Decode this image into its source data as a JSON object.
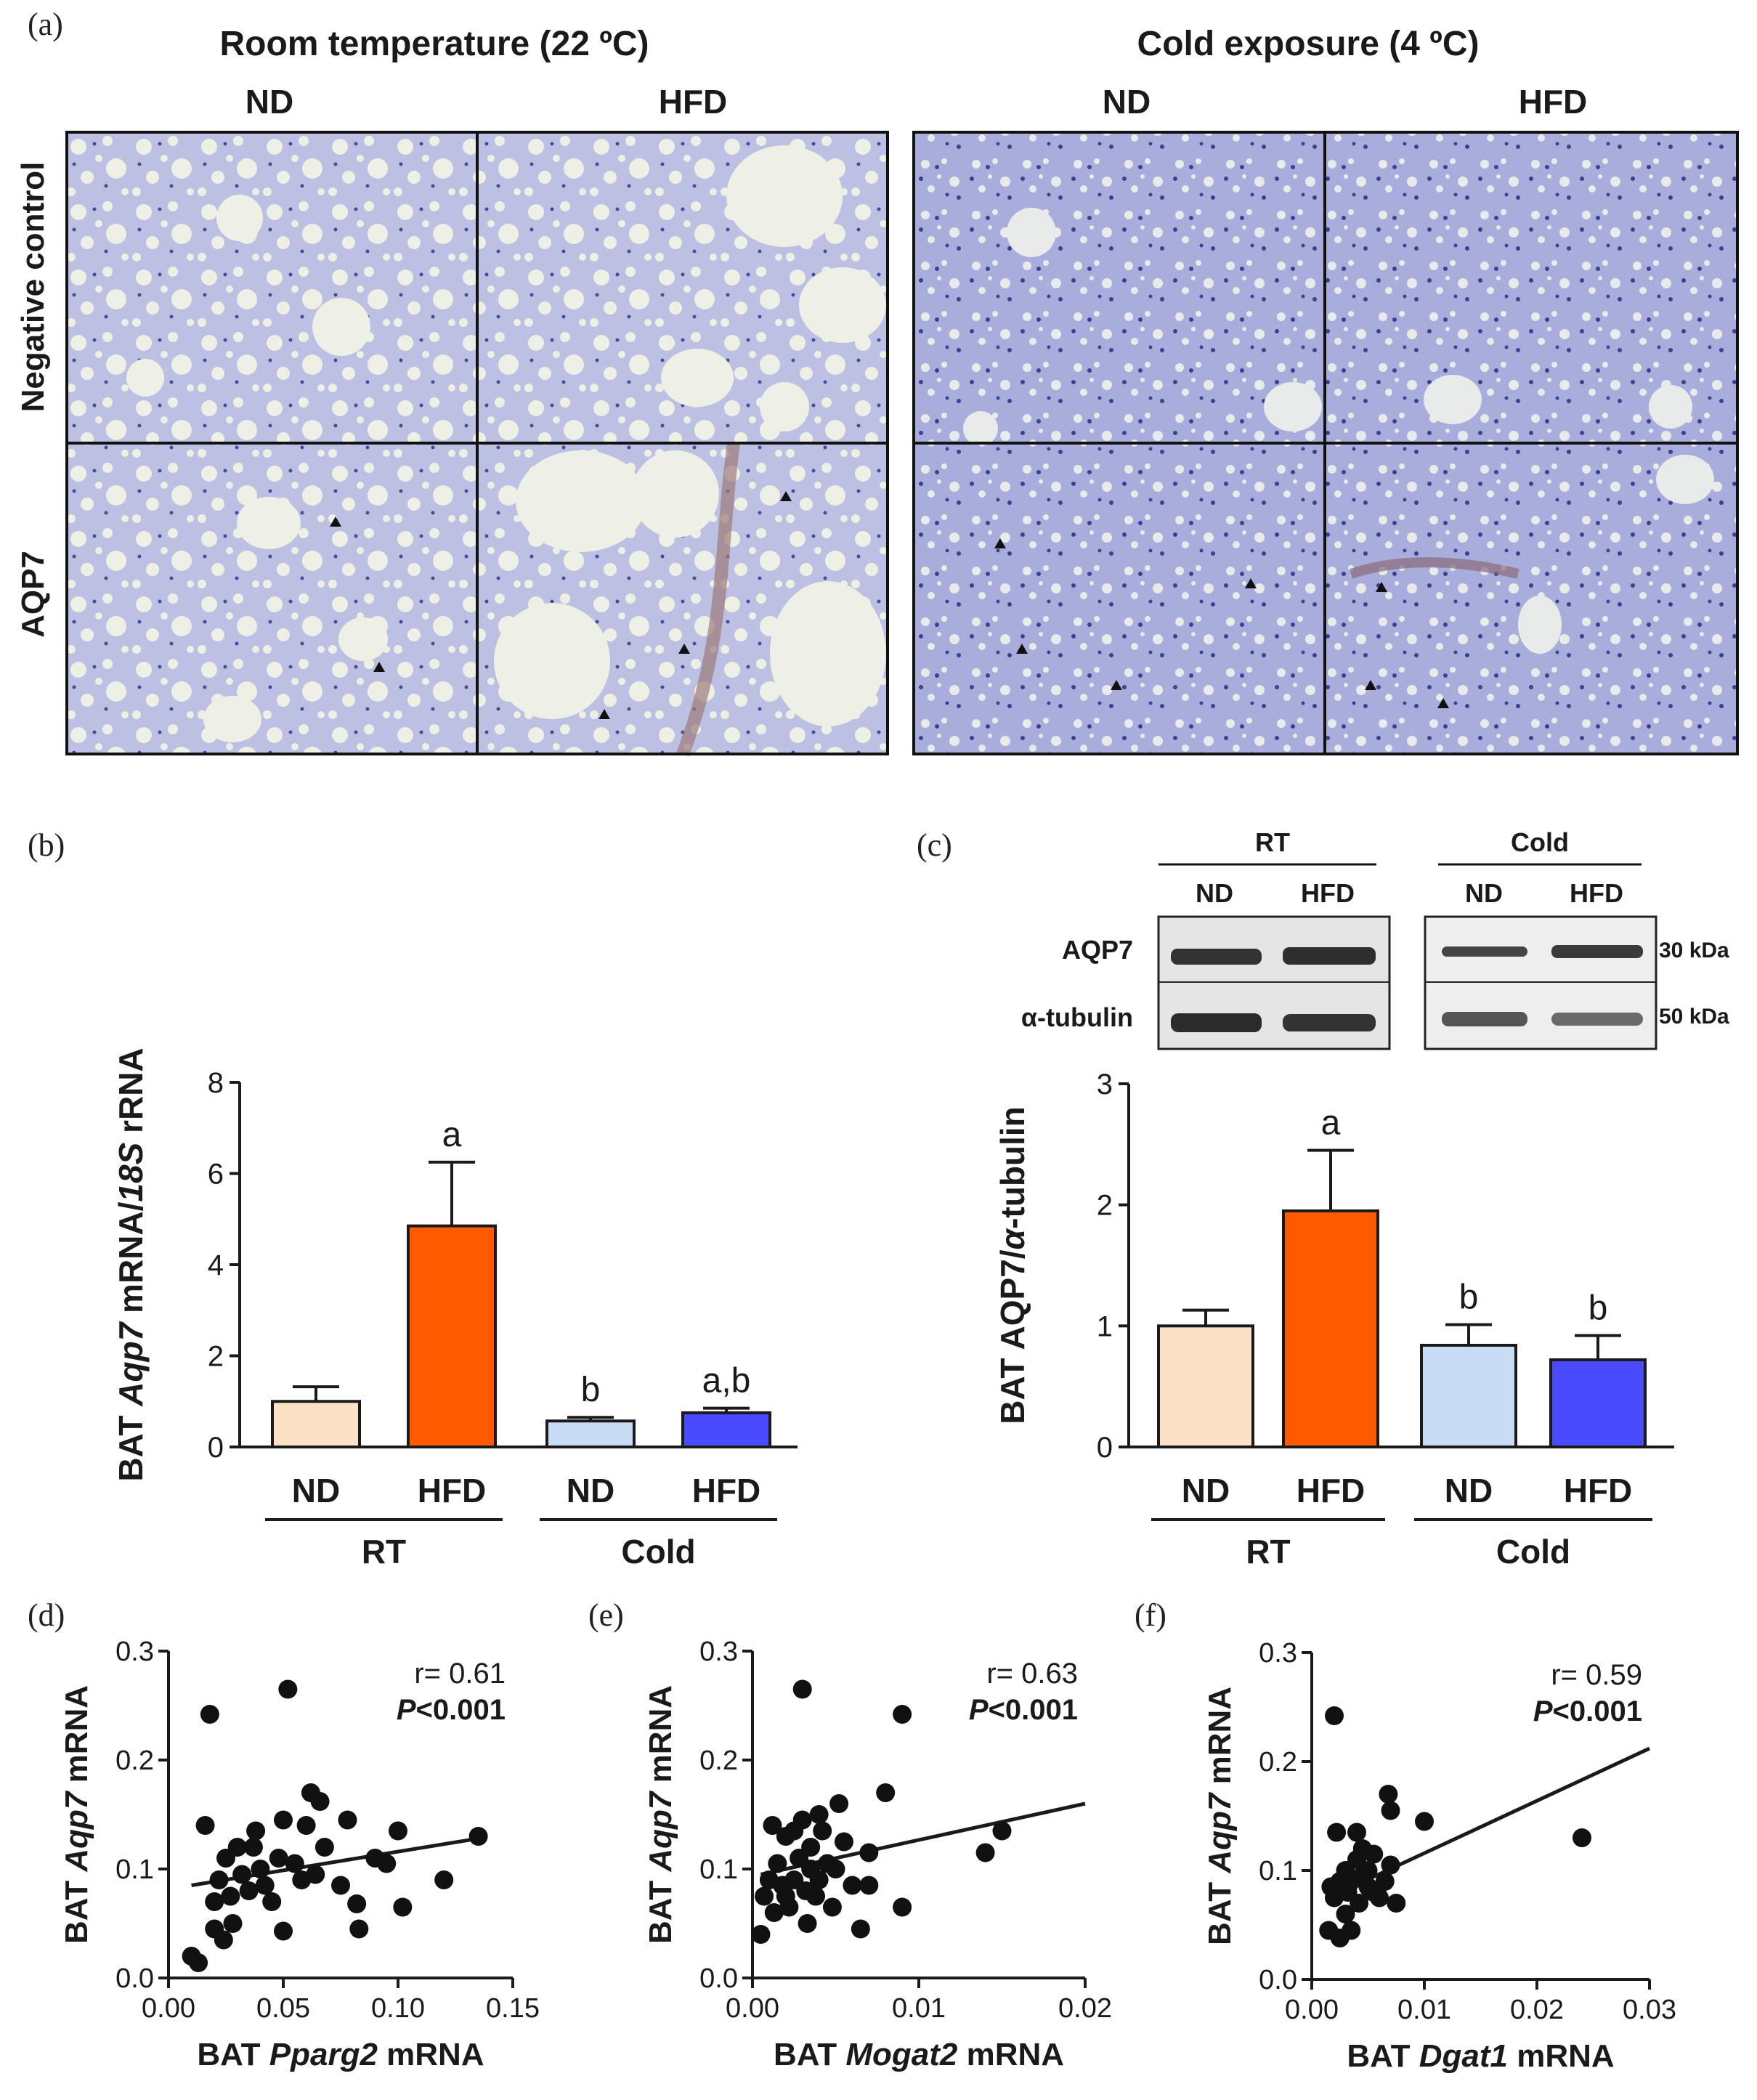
{
  "colors": {
    "rt_nd": "#fde1c6",
    "rt_hfd": "#ff5a00",
    "cold_nd": "#c8dcf6",
    "cold_hfd": "#4a4aff",
    "tissue_bg": "#b9bde0",
    "tissue_dark": "#5a5aa8",
    "fat_cell": "#f1f3e4",
    "ink": "#1a1a1a"
  },
  "panel_a": {
    "letter": "(a)",
    "group_headers": [
      "Room temperature (22 ºC)",
      "Cold exposure (4 ºC)"
    ],
    "column_headers": [
      "ND",
      "HFD",
      "ND",
      "HFD"
    ],
    "row_labels": [
      "Negative control",
      "AQP7"
    ]
  },
  "panel_b": {
    "letter": "(b)"
  },
  "panel_c": {
    "letter": "(c)",
    "blot": {
      "group_labels": [
        "RT",
        "Cold"
      ],
      "lane_labels": [
        "ND",
        "HFD",
        "ND",
        "HFD"
      ],
      "row_labels": [
        "AQP7",
        "α-tubulin"
      ],
      "kda_labels": [
        "30 kDa",
        "50 kDa"
      ]
    }
  },
  "panel_d": {
    "letter": "(d)"
  },
  "panel_e": {
    "letter": "(e)"
  },
  "panel_f": {
    "letter": "(f)"
  },
  "chart_data": [
    {
      "id": "b",
      "type": "bar",
      "ylabel_parts": [
        "BAT ",
        "Aqp7",
        " mRNA/",
        "18S",
        " rRNA"
      ],
      "ylim": [
        0,
        8
      ],
      "yticks": [
        "0",
        "2",
        "4",
        "6",
        "8"
      ],
      "categories": [
        "ND",
        "HFD",
        "ND",
        "HFD"
      ],
      "groups": [
        {
          "label": "RT",
          "span": [
            0,
            1
          ]
        },
        {
          "label": "Cold",
          "span": [
            2,
            3
          ]
        }
      ],
      "values": [
        1.0,
        4.85,
        0.57,
        0.75
      ],
      "errors": [
        0.32,
        1.4,
        0.08,
        0.1
      ],
      "letters": [
        "",
        "a",
        "b",
        "a,b"
      ],
      "colors": [
        "#fde1c6",
        "#ff5a00",
        "#c8dcf6",
        "#4a4aff"
      ]
    },
    {
      "id": "c",
      "type": "bar",
      "ylabel_parts": [
        "BAT AQP7/",
        "α",
        "-tubulin"
      ],
      "ylim": [
        0,
        3
      ],
      "yticks": [
        "0",
        "1",
        "2",
        "3"
      ],
      "categories": [
        "ND",
        "HFD",
        "ND",
        "HFD"
      ],
      "groups": [
        {
          "label": "RT",
          "span": [
            0,
            1
          ]
        },
        {
          "label": "Cold",
          "span": [
            2,
            3
          ]
        }
      ],
      "values": [
        1.0,
        1.95,
        0.84,
        0.72
      ],
      "errors": [
        0.13,
        0.5,
        0.17,
        0.2
      ],
      "letters": [
        "",
        "a",
        "b",
        "b"
      ],
      "colors": [
        "#fde1c6",
        "#ff5a00",
        "#c8dcf6",
        "#4a4aff"
      ]
    },
    {
      "id": "d",
      "type": "scatter",
      "xlabel_parts": [
        "BAT ",
        "Pparg2",
        " mRNA"
      ],
      "ylabel_parts": [
        "BAT ",
        "Aqp7",
        " mRNA"
      ],
      "xlim": [
        0,
        0.15
      ],
      "ylim": [
        0,
        0.3
      ],
      "xticks": [
        "0.00",
        "0.05",
        "0.10",
        "0.15"
      ],
      "yticks": [
        "0.0",
        "0.1",
        "0.2",
        "0.3"
      ],
      "r_text": "r= 0.61",
      "p_parts": [
        "P",
        "<0.001"
      ],
      "fit": [
        [
          0.01,
          0.085
        ],
        [
          0.135,
          0.128
        ]
      ],
      "points": [
        [
          0.01,
          0.02
        ],
        [
          0.013,
          0.014
        ],
        [
          0.016,
          0.14
        ],
        [
          0.018,
          0.242
        ],
        [
          0.02,
          0.045
        ],
        [
          0.02,
          0.07
        ],
        [
          0.022,
          0.09
        ],
        [
          0.024,
          0.035
        ],
        [
          0.025,
          0.11
        ],
        [
          0.027,
          0.075
        ],
        [
          0.028,
          0.05
        ],
        [
          0.03,
          0.12
        ],
        [
          0.032,
          0.095
        ],
        [
          0.035,
          0.08
        ],
        [
          0.037,
          0.12
        ],
        [
          0.038,
          0.135
        ],
        [
          0.04,
          0.1
        ],
        [
          0.042,
          0.085
        ],
        [
          0.045,
          0.07
        ],
        [
          0.048,
          0.11
        ],
        [
          0.05,
          0.145
        ],
        [
          0.05,
          0.043
        ],
        [
          0.052,
          0.265
        ],
        [
          0.055,
          0.105
        ],
        [
          0.058,
          0.09
        ],
        [
          0.06,
          0.14
        ],
        [
          0.062,
          0.17
        ],
        [
          0.064,
          0.095
        ],
        [
          0.066,
          0.162
        ],
        [
          0.068,
          0.12
        ],
        [
          0.075,
          0.085
        ],
        [
          0.078,
          0.145
        ],
        [
          0.082,
          0.068
        ],
        [
          0.083,
          0.045
        ],
        [
          0.09,
          0.11
        ],
        [
          0.095,
          0.105
        ],
        [
          0.1,
          0.135
        ],
        [
          0.102,
          0.065
        ],
        [
          0.12,
          0.09
        ],
        [
          0.135,
          0.13
        ]
      ]
    },
    {
      "id": "e",
      "type": "scatter",
      "xlabel_parts": [
        "BAT ",
        "Mogat2",
        " mRNA"
      ],
      "ylabel_parts": [
        "BAT ",
        "Aqp7",
        " mRNA"
      ],
      "xlim": [
        0,
        0.02
      ],
      "ylim": [
        0,
        0.3
      ],
      "xticks": [
        "0.00",
        "0.01",
        "0.02"
      ],
      "yticks": [
        "0.0",
        "0.1",
        "0.2",
        "0.3"
      ],
      "r_text": "r= 0.63",
      "p_parts": [
        "P",
        "<0.001"
      ],
      "fit": [
        [
          0.0005,
          0.095
        ],
        [
          0.02,
          0.16
        ]
      ],
      "points": [
        [
          0.0005,
          0.04
        ],
        [
          0.0007,
          0.075
        ],
        [
          0.001,
          0.09
        ],
        [
          0.0012,
          0.14
        ],
        [
          0.0013,
          0.06
        ],
        [
          0.0015,
          0.105
        ],
        [
          0.0018,
          0.085
        ],
        [
          0.002,
          0.075
        ],
        [
          0.002,
          0.13
        ],
        [
          0.0022,
          0.065
        ],
        [
          0.0025,
          0.09
        ],
        [
          0.0025,
          0.135
        ],
        [
          0.0028,
          0.11
        ],
        [
          0.003,
          0.265
        ],
        [
          0.003,
          0.145
        ],
        [
          0.0032,
          0.08
        ],
        [
          0.0033,
          0.05
        ],
        [
          0.0035,
          0.1
        ],
        [
          0.0035,
          0.12
        ],
        [
          0.0038,
          0.075
        ],
        [
          0.004,
          0.09
        ],
        [
          0.004,
          0.15
        ],
        [
          0.0042,
          0.135
        ],
        [
          0.0045,
          0.105
        ],
        [
          0.0048,
          0.065
        ],
        [
          0.005,
          0.1
        ],
        [
          0.0052,
          0.16
        ],
        [
          0.0055,
          0.125
        ],
        [
          0.006,
          0.085
        ],
        [
          0.0065,
          0.045
        ],
        [
          0.007,
          0.115
        ],
        [
          0.007,
          0.085
        ],
        [
          0.008,
          0.17
        ],
        [
          0.009,
          0.065
        ],
        [
          0.009,
          0.242
        ],
        [
          0.014,
          0.115
        ],
        [
          0.015,
          0.135
        ]
      ]
    },
    {
      "id": "f",
      "type": "scatter",
      "xlabel_parts": [
        "BAT ",
        "Dgat1",
        " mRNA"
      ],
      "ylabel_parts": [
        "BAT ",
        "Aqp7",
        " mRNA"
      ],
      "xlim": [
        0,
        0.03
      ],
      "ylim": [
        0,
        0.3
      ],
      "xticks": [
        "0.00",
        "0.01",
        "0.02",
        "0.03"
      ],
      "yticks": [
        "0.0",
        "0.1",
        "0.2",
        "0.3"
      ],
      "r_text": "r= 0.59",
      "p_parts": [
        "P",
        "<0.001"
      ],
      "fit": [
        [
          0.0015,
          0.075
        ],
        [
          0.03,
          0.212
        ]
      ],
      "points": [
        [
          0.0015,
          0.045
        ],
        [
          0.0017,
          0.085
        ],
        [
          0.002,
          0.075
        ],
        [
          0.002,
          0.242
        ],
        [
          0.0022,
          0.135
        ],
        [
          0.0025,
          0.09
        ],
        [
          0.0025,
          0.038
        ],
        [
          0.003,
          0.06
        ],
        [
          0.003,
          0.1
        ],
        [
          0.0032,
          0.08
        ],
        [
          0.0035,
          0.09
        ],
        [
          0.0035,
          0.045
        ],
        [
          0.004,
          0.11
        ],
        [
          0.004,
          0.135
        ],
        [
          0.0042,
          0.07
        ],
        [
          0.0045,
          0.095
        ],
        [
          0.0045,
          0.12
        ],
        [
          0.005,
          0.085
        ],
        [
          0.005,
          0.1
        ],
        [
          0.0055,
          0.08
        ],
        [
          0.0055,
          0.115
        ],
        [
          0.006,
          0.075
        ],
        [
          0.0065,
          0.09
        ],
        [
          0.0068,
          0.17
        ],
        [
          0.007,
          0.155
        ],
        [
          0.007,
          0.105
        ],
        [
          0.0075,
          0.07
        ],
        [
          0.01,
          0.145
        ],
        [
          0.024,
          0.13
        ]
      ]
    }
  ]
}
